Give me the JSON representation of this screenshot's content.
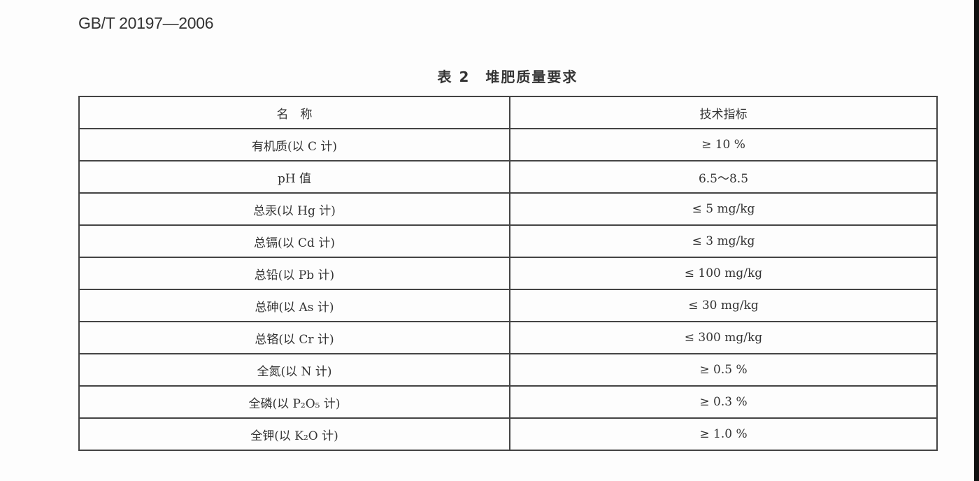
{
  "document": {
    "standard_id": "GB/T 20197—2006",
    "table_caption": "表 2　堆肥质量要求",
    "table": {
      "headers": [
        "名　称",
        "技术指标"
      ],
      "rows": [
        {
          "name": "有机质(以 C 计)",
          "value": "≥ 10 %"
        },
        {
          "name": "pH 值",
          "value": "6.5～8.5"
        },
        {
          "name": "总汞(以 Hg 计)",
          "value": "≤ 5 mg/kg"
        },
        {
          "name": "总镉(以 Cd 计)",
          "value": "≤ 3 mg/kg"
        },
        {
          "name": "总铅(以 Pb 计)",
          "value": "≤ 100 mg/kg"
        },
        {
          "name": "总砷(以 As 计)",
          "value": "≤ 30 mg/kg"
        },
        {
          "name": "总铬(以 Cr 计)",
          "value": "≤ 300 mg/kg"
        },
        {
          "name": "全氮(以 N 计)",
          "value": "≥ 0.5 %"
        },
        {
          "name": "全磷(以 P₂O₅ 计)",
          "value": "≥ 0.3 %"
        },
        {
          "name": "全钾(以 K₂O 计)",
          "value": "≥ 1.0 %"
        }
      ]
    }
  }
}
